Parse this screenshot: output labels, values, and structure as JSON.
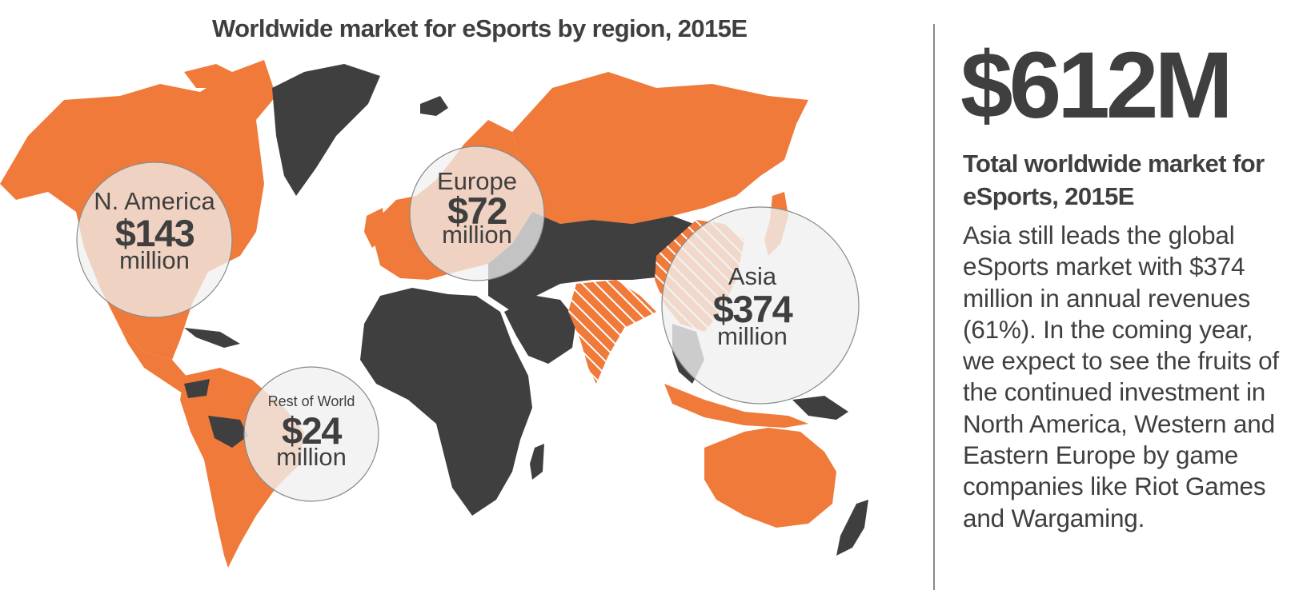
{
  "colors": {
    "leading_regions": "#f07a3a",
    "other_regions": "#3f3f3f",
    "bubble": "#f0f0f0",
    "text": "#3f3f3f"
  },
  "chart_data": {
    "type": "bubble-map",
    "title": "Worldwide market for eSports by region, 2015E",
    "unit": "million",
    "regions": [
      {
        "id": "na",
        "name": "N. America",
        "value": 143,
        "label": "$143"
      },
      {
        "id": "eu",
        "name": "Europe",
        "value": 72,
        "label": "$72"
      },
      {
        "id": "asia",
        "name": "Asia",
        "value": 374,
        "label": "$374"
      },
      {
        "id": "row",
        "name": "Rest of World",
        "value": 24,
        "label": "$24"
      }
    ]
  },
  "sidebar": {
    "total": "$612M",
    "total_label": "Total worldwide market for eSports, 2015E",
    "description": "Asia still leads the global eSports market with $374 million in annual revenues (61%). In the coming year, we expect to see the fruits of the continued investment in North America, Western and Eastern Europe by game companies like Riot Games and Wargaming."
  }
}
